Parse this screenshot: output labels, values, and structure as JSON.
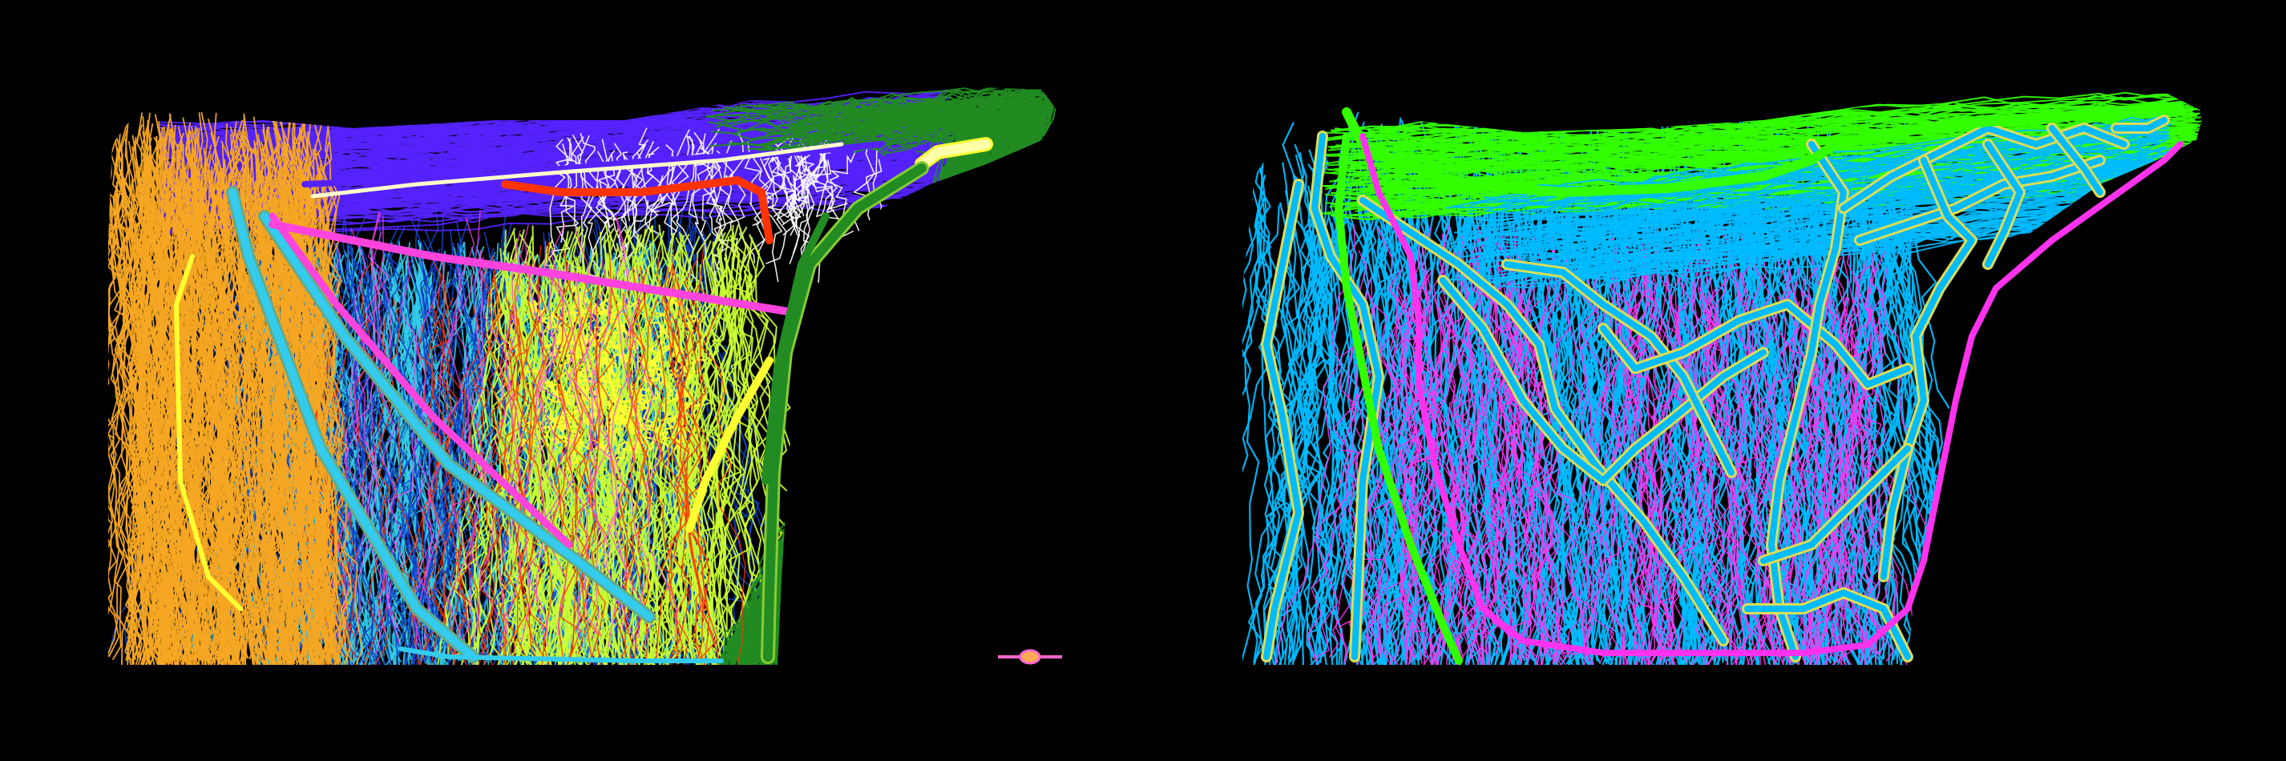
{
  "figure": {
    "background": "#000000",
    "panels": [
      {
        "id": "left",
        "clusters": [
          {
            "name": "orange",
            "color": "#f5a623"
          },
          {
            "name": "yellow",
            "color": "#ffff33"
          },
          {
            "name": "cyan",
            "color": "#33ccee"
          },
          {
            "name": "magenta",
            "color": "#ff44dd"
          },
          {
            "name": "violet",
            "color": "#5522ff"
          },
          {
            "name": "white",
            "color": "#ffffff"
          },
          {
            "name": "green",
            "color": "#228b22"
          },
          {
            "name": "red",
            "color": "#ff3300"
          },
          {
            "name": "blue",
            "color": "#1144cc"
          },
          {
            "name": "lime",
            "color": "#ccff33"
          }
        ]
      },
      {
        "id": "right",
        "clusters": [
          {
            "name": "sky",
            "color": "#00bbff"
          },
          {
            "name": "magenta",
            "color": "#ff33ee"
          },
          {
            "name": "green",
            "color": "#33ff00"
          },
          {
            "name": "khaki",
            "color": "#dddd55"
          }
        ]
      }
    ]
  }
}
